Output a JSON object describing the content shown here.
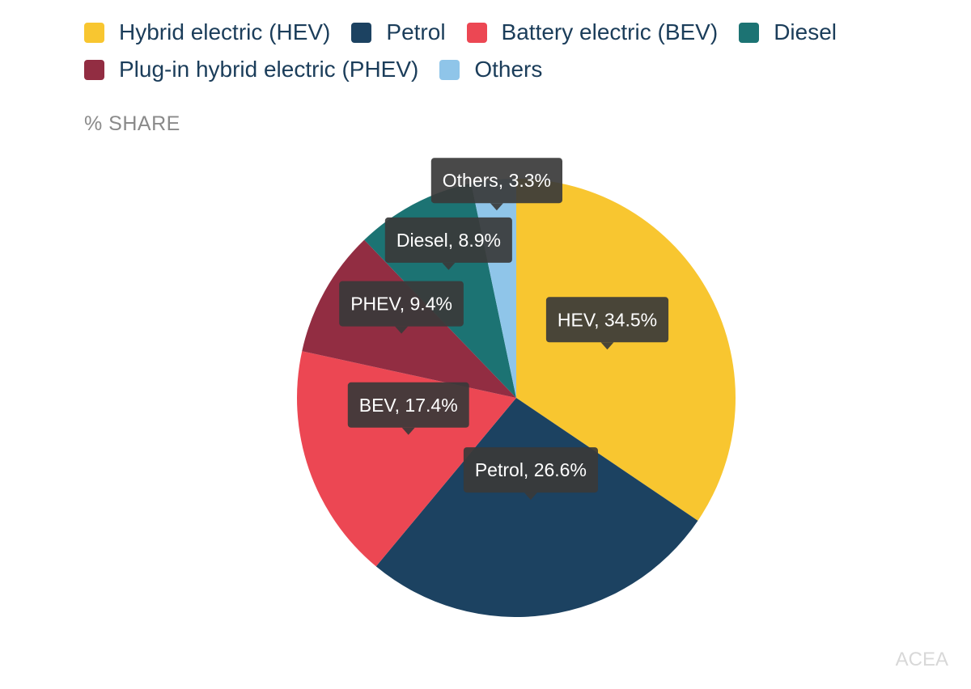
{
  "chart_data": {
    "type": "pie",
    "title": "",
    "unit_label": "% SHARE",
    "legend_position": "top",
    "series": [
      {
        "name": "Hybrid electric (HEV)",
        "label": "HEV, 34.5%",
        "value": 34.5,
        "color": "#f8c630"
      },
      {
        "name": "Petrol",
        "label": "Petrol, 26.6%",
        "value": 26.6,
        "color": "#1c4261"
      },
      {
        "name": "Battery electric (BEV)",
        "label": "BEV, 17.4%",
        "value": 17.4,
        "color": "#ec4753"
      },
      {
        "name": "Plug-in hybrid electric (PHEV)",
        "label": "PHEV, 9.4%",
        "value": 9.4,
        "color": "#922d42"
      },
      {
        "name": "Diesel",
        "label": "Diesel, 8.9%",
        "value": 8.9,
        "color": "#1c7373"
      },
      {
        "name": "Others",
        "label": "Others, 3.3%",
        "value": 3.3,
        "color": "#8fc5e9"
      }
    ],
    "legend_order": [
      0,
      1,
      2,
      4,
      3,
      5
    ]
  },
  "source": "ACEA"
}
